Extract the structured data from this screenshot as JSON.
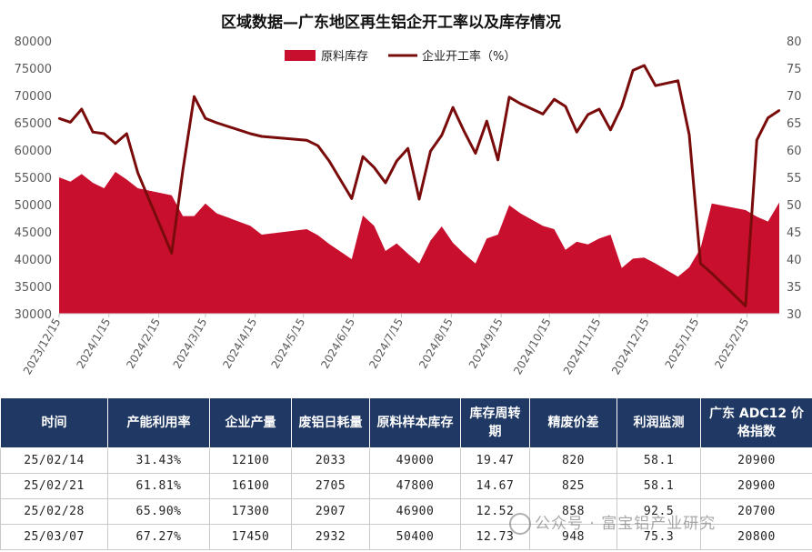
{
  "chart_data": {
    "type": "area+line",
    "title": "区域数据—广东地区再生铝企开工率以及库存情况",
    "legend": {
      "placement": "top-center",
      "items": [
        "原料库存",
        "企业开工率（%）"
      ]
    },
    "colors": {
      "area": "#c8102e",
      "line": "#7a0b0b"
    },
    "left_axis": {
      "min": 30000,
      "max": 80000,
      "step": 5000,
      "ticks": [
        "80000",
        "75000",
        "70000",
        "65000",
        "60000",
        "55000",
        "50000",
        "45000",
        "40000",
        "35000",
        "30000"
      ]
    },
    "right_axis": {
      "min": 30,
      "max": 80,
      "step": 5,
      "ticks": [
        "80",
        "75",
        "70",
        "65",
        "60",
        "55",
        "50",
        "45",
        "40",
        "35",
        "30"
      ]
    },
    "x_ticks": [
      "2023/12/15",
      "2024/1/15",
      "2024/2/15",
      "2024/3/15",
      "2024/4/15",
      "2024/5/15",
      "2024/6/15",
      "2024/7/15",
      "2024/8/15",
      "2024/9/15",
      "2024/10/15",
      "2024/11/15",
      "2024/12/15",
      "2025/1/15",
      "2025/2/15"
    ],
    "x": [
      "2023/12/15",
      "2023/12/22",
      "2023/12/29",
      "2024/1/5",
      "2024/1/12",
      "2024/1/19",
      "2024/1/26",
      "2024/2/2",
      "2024/2/23",
      "2024/3/1",
      "2024/3/8",
      "2024/3/15",
      "2024/3/22",
      "2024/4/12",
      "2024/4/19",
      "2024/5/17",
      "2024/5/24",
      "2024/5/31",
      "2024/6/14",
      "2024/6/21",
      "2024/6/28",
      "2024/7/5",
      "2024/7/12",
      "2024/7/19",
      "2024/7/26",
      "2024/8/2",
      "2024/8/9",
      "2024/8/16",
      "2024/8/23",
      "2024/8/30",
      "2024/9/6",
      "2024/9/13",
      "2024/9/20",
      "2024/9/27",
      "2024/10/11",
      "2024/10/18",
      "2024/10/25",
      "2024/11/1",
      "2024/11/8",
      "2024/11/15",
      "2024/11/22",
      "2024/11/29",
      "2024/12/6",
      "2024/12/13",
      "2024/12/20",
      "2025/1/3",
      "2025/1/10",
      "2025/1/17",
      "2025/1/24",
      "2025/2/14",
      "2025/2/21",
      "2025/2/28",
      "2025/3/7"
    ],
    "series": [
      {
        "name": "原料库存",
        "type": "area",
        "axis": "left",
        "values": [
          55000,
          54200,
          55600,
          54000,
          53000,
          56000,
          54600,
          53000,
          51700,
          47900,
          47900,
          50200,
          48400,
          46100,
          44500,
          45500,
          44400,
          42800,
          40000,
          48000,
          46100,
          41500,
          42900,
          41000,
          39200,
          43400,
          46000,
          43000,
          41000,
          39200,
          43800,
          44500,
          49900,
          48400,
          46100,
          45500,
          41700,
          43200,
          42700,
          43800,
          44500,
          38400,
          40100,
          40300,
          39200,
          36800,
          38500,
          42000,
          50200,
          49000,
          47800,
          46900,
          50400
        ]
      },
      {
        "name": "企业开工率（%）",
        "type": "line",
        "axis": "right",
        "values": [
          65.8,
          65.1,
          67.5,
          63.3,
          63.0,
          61.2,
          63.0,
          55.8,
          41.1,
          56.3,
          69.8,
          65.8,
          65.0,
          63.0,
          62.5,
          61.8,
          60.8,
          58.0,
          51.1,
          58.8,
          56.8,
          54.0,
          58.0,
          60.3,
          51.0,
          59.8,
          62.7,
          67.8,
          63.4,
          59.4,
          65.3,
          58.2,
          69.7,
          68.5,
          66.6,
          69.3,
          68.0,
          63.3,
          66.5,
          67.5,
          63.7,
          68.0,
          74.6,
          75.5,
          71.8,
          72.7,
          62.8,
          39.2,
          37.4,
          31.43,
          61.81,
          65.9,
          67.27
        ]
      }
    ]
  },
  "table": {
    "headers": [
      "时间",
      "产能利用率",
      "企业产量",
      "废铝日耗量",
      "原料样本库存",
      "库存周转期",
      "精废价差",
      "利润监测",
      "广东 ADC12 价格指数"
    ],
    "rows": [
      [
        "25/02/14",
        "31.43%",
        "12100",
        "2033",
        "49000",
        "19.47",
        "820",
        "58.1",
        "20900"
      ],
      [
        "25/02/21",
        "61.81%",
        "16100",
        "2705",
        "47800",
        "14.67",
        "825",
        "58.1",
        "20900"
      ],
      [
        "25/02/28",
        "65.90%",
        "17300",
        "2907",
        "46900",
        "12.52",
        "858",
        "92.5",
        "20700"
      ],
      [
        "25/03/07",
        "67.27%",
        "17450",
        "2932",
        "50400",
        "12.73",
        "948",
        "75.3",
        "20800"
      ]
    ]
  },
  "watermark": {
    "text": "公众号 · 富宝铝产业研究",
    "icon": "wechat-icon"
  }
}
